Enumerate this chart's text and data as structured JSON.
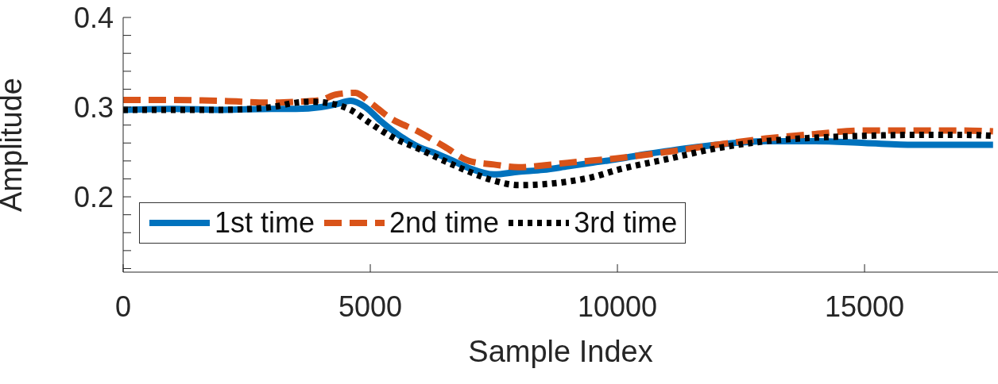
{
  "chart_data": {
    "type": "line",
    "xlabel": "Sample Index",
    "ylabel": "Amplitude",
    "xlim": [
      0,
      17700
    ],
    "xticks": [
      0,
      5000,
      10000,
      15000
    ],
    "ylim": [
      0.116,
      0.4
    ],
    "yticks": [
      {
        "value": 0.12,
        "label": null
      },
      {
        "value": 0.14,
        "label": null
      },
      {
        "value": 0.16,
        "label": null
      },
      {
        "value": 0.18,
        "label": null
      },
      {
        "value": 0.2,
        "label": "0.2"
      },
      {
        "value": 0.22,
        "label": null
      },
      {
        "value": 0.24,
        "label": null
      },
      {
        "value": 0.26,
        "label": null
      },
      {
        "value": 0.28,
        "label": null
      },
      {
        "value": 0.3,
        "label": "0.3"
      },
      {
        "value": 0.32,
        "label": null
      },
      {
        "value": 0.34,
        "label": null
      },
      {
        "value": 0.36,
        "label": null
      },
      {
        "value": 0.38,
        "label": null
      },
      {
        "value": 0.4,
        "label": "0.4"
      }
    ],
    "grid": false,
    "legend": "bottom left",
    "marker": "none",
    "series": [
      {
        "name": "1st time",
        "color": "#0072bd",
        "line_style": "solid",
        "x": [
          0,
          1000,
          2000,
          3000,
          3500,
          4000,
          4300,
          4600,
          4900,
          5200,
          5600,
          6000,
          6300,
          6600,
          7000,
          7500,
          8000,
          8500,
          9000,
          9500,
          10000,
          10500,
          11000,
          12000,
          13000,
          14000,
          15000,
          16000,
          17000,
          17600
        ],
        "values": [
          0.297,
          0.298,
          0.297,
          0.298,
          0.298,
          0.3,
          0.303,
          0.307,
          0.3,
          0.285,
          0.268,
          0.255,
          0.249,
          0.242,
          0.232,
          0.225,
          0.228,
          0.23,
          0.234,
          0.238,
          0.242,
          0.247,
          0.251,
          0.258,
          0.262,
          0.262,
          0.26,
          0.258,
          0.258,
          0.258
        ]
      },
      {
        "name": "2nd time",
        "color": "#d95319",
        "line_style": "dashed",
        "x": [
          0,
          1000,
          2000,
          3000,
          3500,
          4000,
          4300,
          4700,
          5000,
          5400,
          6000,
          6500,
          7000,
          7500,
          8000,
          8500,
          9000,
          10000,
          11000,
          12000,
          13000,
          14000,
          15000,
          16000,
          17000,
          17600
        ],
        "values": [
          0.308,
          0.308,
          0.307,
          0.305,
          0.306,
          0.308,
          0.314,
          0.316,
          0.305,
          0.288,
          0.272,
          0.256,
          0.24,
          0.236,
          0.233,
          0.235,
          0.238,
          0.243,
          0.25,
          0.258,
          0.265,
          0.27,
          0.274,
          0.274,
          0.274,
          0.273
        ]
      },
      {
        "name": "3rd time",
        "color": "#000000",
        "line_style": "dotted",
        "x": [
          0,
          1000,
          2000,
          3000,
          3500,
          3800,
          4200,
          4600,
          5000,
          5500,
          6000,
          6500,
          7000,
          7500,
          8000,
          8500,
          9000,
          9500,
          10000,
          11000,
          12000,
          13000,
          14000,
          15000,
          16000,
          17000,
          17600
        ],
        "values": [
          0.297,
          0.297,
          0.297,
          0.3,
          0.305,
          0.306,
          0.304,
          0.297,
          0.282,
          0.265,
          0.253,
          0.24,
          0.228,
          0.218,
          0.213,
          0.214,
          0.217,
          0.222,
          0.23,
          0.242,
          0.254,
          0.262,
          0.266,
          0.268,
          0.269,
          0.269,
          0.268
        ]
      }
    ]
  }
}
